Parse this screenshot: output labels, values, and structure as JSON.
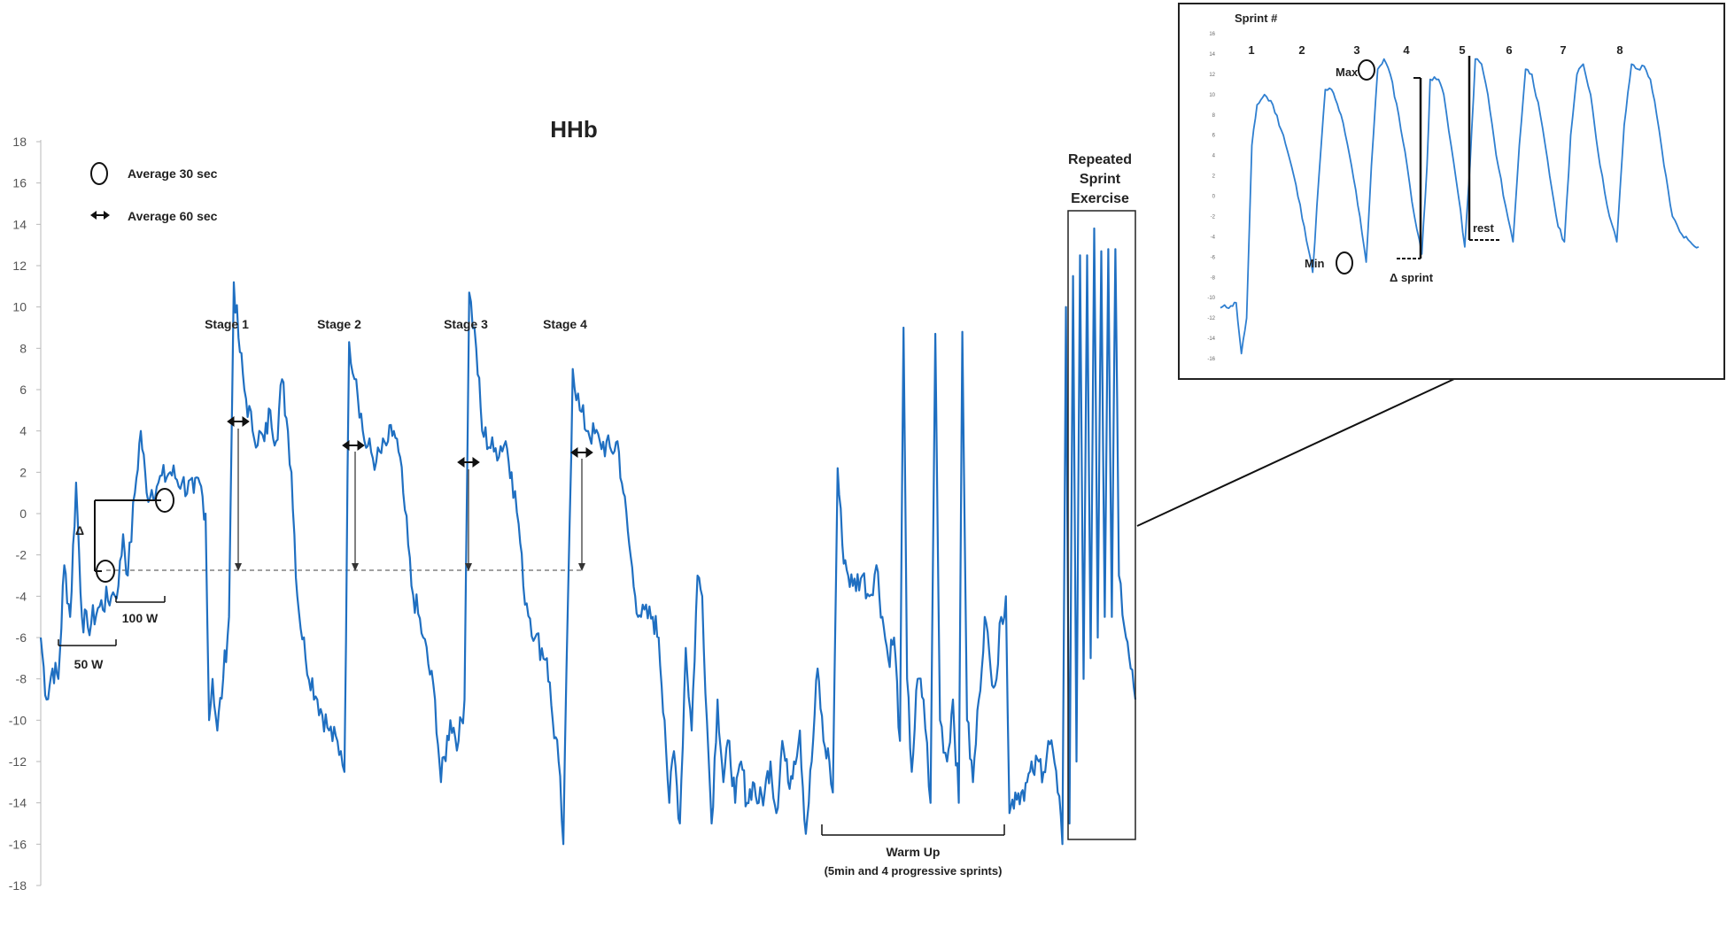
{
  "chart_data": [
    {
      "type": "line",
      "title": "HHb",
      "xlabel": "",
      "ylabel": "",
      "ylim": [
        -18,
        18
      ],
      "y_ticks": [
        18,
        16,
        14,
        12,
        10,
        8,
        6,
        4,
        2,
        0,
        -2,
        -4,
        -6,
        -8,
        -10,
        -12,
        -14,
        -16,
        -18
      ],
      "grid": false,
      "legend": {
        "placement": "top-left",
        "entries": [
          {
            "symbol": "circle",
            "label": "Average 30 sec"
          },
          {
            "symbol": "double-arrow",
            "label": "Average 60 sec"
          }
        ]
      },
      "annotations": {
        "delta": "Δ",
        "w50": "50 W",
        "w100": "100 W",
        "stage1": "Stage 1",
        "stage2": "Stage 2",
        "stage3": "Stage 3",
        "stage4": "Stage 4",
        "warmup_line1": "Warm Up",
        "warmup_line2": "(5min and 4 progressive sprints)",
        "rse_line1": "Repeated",
        "rse_line2": "Sprint",
        "rse_line3": "Exercise"
      },
      "reference_line_y": -2.7,
      "series_keypoints": [
        [
          0,
          -6
        ],
        [
          0.5,
          -9
        ],
        [
          1,
          -7.5
        ],
        [
          1.5,
          -8
        ],
        [
          2,
          -2.5
        ],
        [
          2.5,
          -5
        ],
        [
          3,
          1.5
        ],
        [
          3.5,
          -5
        ],
        [
          4,
          -5.5
        ],
        [
          5,
          -4.5
        ],
        [
          6,
          -4
        ],
        [
          6.6,
          -3.5
        ],
        [
          7,
          -1
        ],
        [
          7.4,
          -3
        ],
        [
          8,
          1
        ],
        [
          8.5,
          4
        ],
        [
          9,
          1
        ],
        [
          10,
          1.5
        ],
        [
          11,
          2
        ],
        [
          12,
          1.5
        ],
        [
          13,
          1
        ],
        [
          13.5,
          1.5
        ],
        [
          14,
          0
        ],
        [
          14.3,
          -10
        ],
        [
          14.6,
          -8
        ],
        [
          15,
          -10.5
        ],
        [
          15.5,
          -8
        ],
        [
          16,
          -5
        ],
        [
          16.4,
          11.2
        ],
        [
          16.8,
          8.5
        ],
        [
          17.3,
          6
        ],
        [
          18,
          4
        ],
        [
          19,
          3.5
        ],
        [
          19.5,
          5
        ],
        [
          20,
          3.5
        ],
        [
          20.5,
          6.5
        ],
        [
          21,
          4
        ],
        [
          21.3,
          2
        ],
        [
          21.8,
          -4
        ],
        [
          22.5,
          -7
        ],
        [
          23.5,
          -9
        ],
        [
          24.5,
          -10.5
        ],
        [
          25.5,
          -11.5
        ],
        [
          25.8,
          -12.5
        ],
        [
          26.2,
          8.3
        ],
        [
          26.8,
          6.5
        ],
        [
          27.5,
          3.5
        ],
        [
          28.5,
          2.5
        ],
        [
          29.5,
          3.5
        ],
        [
          30,
          4
        ],
        [
          30.4,
          3
        ],
        [
          30.8,
          1
        ],
        [
          31.5,
          -3.5
        ],
        [
          32.5,
          -6
        ],
        [
          33.5,
          -9
        ],
        [
          34,
          -13
        ],
        [
          34.8,
          -10
        ],
        [
          35.5,
          -11
        ],
        [
          36,
          -9
        ],
        [
          36.4,
          10.7
        ],
        [
          37,
          8
        ],
        [
          37.5,
          4
        ],
        [
          38.5,
          3
        ],
        [
          39.5,
          3.5
        ],
        [
          40,
          2
        ],
        [
          40.6,
          -0.5
        ],
        [
          41,
          -3.5
        ],
        [
          42,
          -6
        ],
        [
          43,
          -7
        ],
        [
          43.5,
          -10
        ],
        [
          44,
          -12
        ],
        [
          44.4,
          -16
        ],
        [
          44.8,
          -4
        ],
        [
          45.2,
          7
        ],
        [
          45.8,
          5
        ],
        [
          46.5,
          4
        ],
        [
          47.5,
          3.5
        ],
        [
          48.5,
          3
        ],
        [
          49,
          3.5
        ],
        [
          49.5,
          1
        ],
        [
          50,
          -1.5
        ],
        [
          50.5,
          -4
        ],
        [
          51,
          -5
        ],
        [
          52,
          -5
        ],
        [
          52.5,
          -6
        ],
        [
          53,
          -10
        ],
        [
          53.4,
          -14
        ],
        [
          53.8,
          -11.5
        ],
        [
          54.3,
          -15
        ],
        [
          54.8,
          -6.5
        ],
        [
          55.3,
          -10.5
        ],
        [
          55.8,
          -3
        ],
        [
          56.2,
          -4
        ],
        [
          56.6,
          -10
        ],
        [
          57,
          -15
        ],
        [
          57.5,
          -9
        ],
        [
          58,
          -13
        ],
        [
          58.5,
          -11
        ],
        [
          59,
          -14
        ],
        [
          59.5,
          -12
        ],
        [
          60,
          -14
        ],
        [
          60.5,
          -13
        ],
        [
          61,
          -14
        ],
        [
          61.5,
          -13.5
        ],
        [
          62,
          -12
        ],
        [
          62.5,
          -14.5
        ],
        [
          63,
          -11
        ],
        [
          63.5,
          -13
        ],
        [
          64,
          -12
        ],
        [
          64.5,
          -10.5
        ],
        [
          65,
          -15.5
        ],
        [
          65.5,
          -12
        ],
        [
          66,
          -7.5
        ],
        [
          66.5,
          -11
        ],
        [
          67,
          -12
        ],
        [
          67.3,
          -13.5
        ],
        [
          67.7,
          2.2
        ],
        [
          68.1,
          -1.5
        ],
        [
          68.6,
          -3
        ],
        [
          69,
          -3.5
        ],
        [
          69.8,
          -3
        ],
        [
          70.4,
          -4
        ],
        [
          71,
          -2.5
        ],
        [
          71.5,
          -5
        ],
        [
          72,
          -7
        ],
        [
          72.5,
          -6
        ],
        [
          73,
          -11
        ],
        [
          73.3,
          9
        ],
        [
          73.6,
          -8
        ],
        [
          74,
          -12.5
        ],
        [
          74.5,
          -8
        ],
        [
          75,
          -9
        ],
        [
          75.6,
          -14
        ],
        [
          76,
          8.7
        ],
        [
          76.4,
          -10
        ],
        [
          77,
          -12
        ],
        [
          77.5,
          -9
        ],
        [
          78,
          -14
        ],
        [
          78.3,
          8.8
        ],
        [
          78.7,
          -10
        ],
        [
          79.2,
          -13
        ],
        [
          79.7,
          -9
        ],
        [
          80.2,
          -5
        ],
        [
          80.7,
          -7.5
        ],
        [
          81.2,
          -8
        ],
        [
          81.6,
          -5
        ],
        [
          82,
          -4
        ],
        [
          82.3,
          -14.5
        ],
        [
          82.8,
          -13.5
        ],
        [
          83.3,
          -13.5
        ],
        [
          83.8,
          -13
        ],
        [
          84.3,
          -12.5
        ],
        [
          84.8,
          -12
        ],
        [
          85.2,
          -12.5
        ],
        [
          85.6,
          -11
        ],
        [
          86,
          -11.5
        ],
        [
          86.4,
          -13.5
        ],
        [
          86.8,
          -16
        ],
        [
          87.1,
          10
        ],
        [
          87.4,
          -15
        ],
        [
          87.7,
          11.5
        ],
        [
          88,
          -12
        ],
        [
          88.3,
          12.5
        ],
        [
          88.6,
          -8
        ],
        [
          88.9,
          12.5
        ],
        [
          89.2,
          -7
        ],
        [
          89.5,
          13.8
        ],
        [
          89.8,
          -6
        ],
        [
          90.1,
          12.7
        ],
        [
          90.4,
          -5
        ],
        [
          90.7,
          12.8
        ],
        [
          91,
          -5
        ],
        [
          91.3,
          12.8
        ],
        [
          91.6,
          -3
        ],
        [
          92.2,
          -6
        ],
        [
          92.6,
          -7.5
        ],
        [
          93,
          -9
        ]
      ],
      "series_x_range": [
        0,
        93
      ]
    },
    {
      "type": "line",
      "title": "Sprint #",
      "sprint_numbers": [
        "1",
        "2",
        "3",
        "4",
        "5",
        "6",
        "7",
        "8"
      ],
      "y_ticks": [
        "16",
        "14",
        "12",
        "10",
        "8",
        "6",
        "4",
        "2",
        "0",
        "-2",
        "-4",
        "-6",
        "-8",
        "-10",
        "-12",
        "-14",
        "-16"
      ],
      "ylim": [
        -16,
        16
      ],
      "annotations": {
        "max": "Max",
        "min": "Min",
        "delta_sprint": "Δ sprint",
        "rest": "rest"
      },
      "series_keypoints": [
        [
          0,
          -11
        ],
        [
          1,
          -10.8
        ],
        [
          1.5,
          -10.5
        ],
        [
          2,
          -15.5
        ],
        [
          2.5,
          -12
        ],
        [
          3,
          5
        ],
        [
          3.5,
          9
        ],
        [
          4.2,
          10
        ],
        [
          5,
          9
        ],
        [
          6,
          6
        ],
        [
          7,
          2
        ],
        [
          8,
          -3
        ],
        [
          8.8,
          -7.5
        ],
        [
          9.4,
          2
        ],
        [
          10,
          10.5
        ],
        [
          10.6,
          10.5
        ],
        [
          11.5,
          8
        ],
        [
          12.5,
          3
        ],
        [
          13.3,
          -2
        ],
        [
          13.9,
          -6.5
        ],
        [
          14.4,
          3
        ],
        [
          15,
          12.5
        ],
        [
          15.6,
          13.5
        ],
        [
          16.2,
          12
        ],
        [
          17,
          8
        ],
        [
          17.8,
          3
        ],
        [
          18.5,
          -2
        ],
        [
          19.2,
          -5.7
        ],
        [
          19.7,
          3
        ],
        [
          20,
          11.5
        ],
        [
          20.8,
          11.5
        ],
        [
          21.3,
          10
        ],
        [
          22,
          5
        ],
        [
          22.7,
          0
        ],
        [
          23.3,
          -5
        ],
        [
          23.8,
          3
        ],
        [
          24.3,
          13.5
        ],
        [
          24.9,
          13
        ],
        [
          25.5,
          10
        ],
        [
          26.3,
          4
        ],
        [
          27.2,
          -1
        ],
        [
          27.9,
          -4.5
        ],
        [
          28.5,
          5
        ],
        [
          29.1,
          12.5
        ],
        [
          29.7,
          12
        ],
        [
          30.5,
          8
        ],
        [
          31.4,
          2
        ],
        [
          32.2,
          -3
        ],
        [
          32.8,
          -4.5
        ],
        [
          33.4,
          6
        ],
        [
          34.0,
          12
        ],
        [
          34.6,
          13
        ],
        [
          35.3,
          10
        ],
        [
          36.2,
          3
        ],
        [
          37.1,
          -2
        ],
        [
          37.8,
          -4.5
        ],
        [
          38.5,
          7
        ],
        [
          39.2,
          13
        ],
        [
          39.8,
          12.5
        ],
        [
          40.4,
          12.8
        ],
        [
          41.0,
          11.5
        ],
        [
          41.6,
          8
        ],
        [
          42.3,
          3
        ],
        [
          43.1,
          -2
        ],
        [
          43.8,
          -3.5
        ],
        [
          44.8,
          -4.5
        ],
        [
          45.6,
          -5
        ]
      ],
      "series_x_range": [
        0,
        45.6
      ]
    }
  ]
}
